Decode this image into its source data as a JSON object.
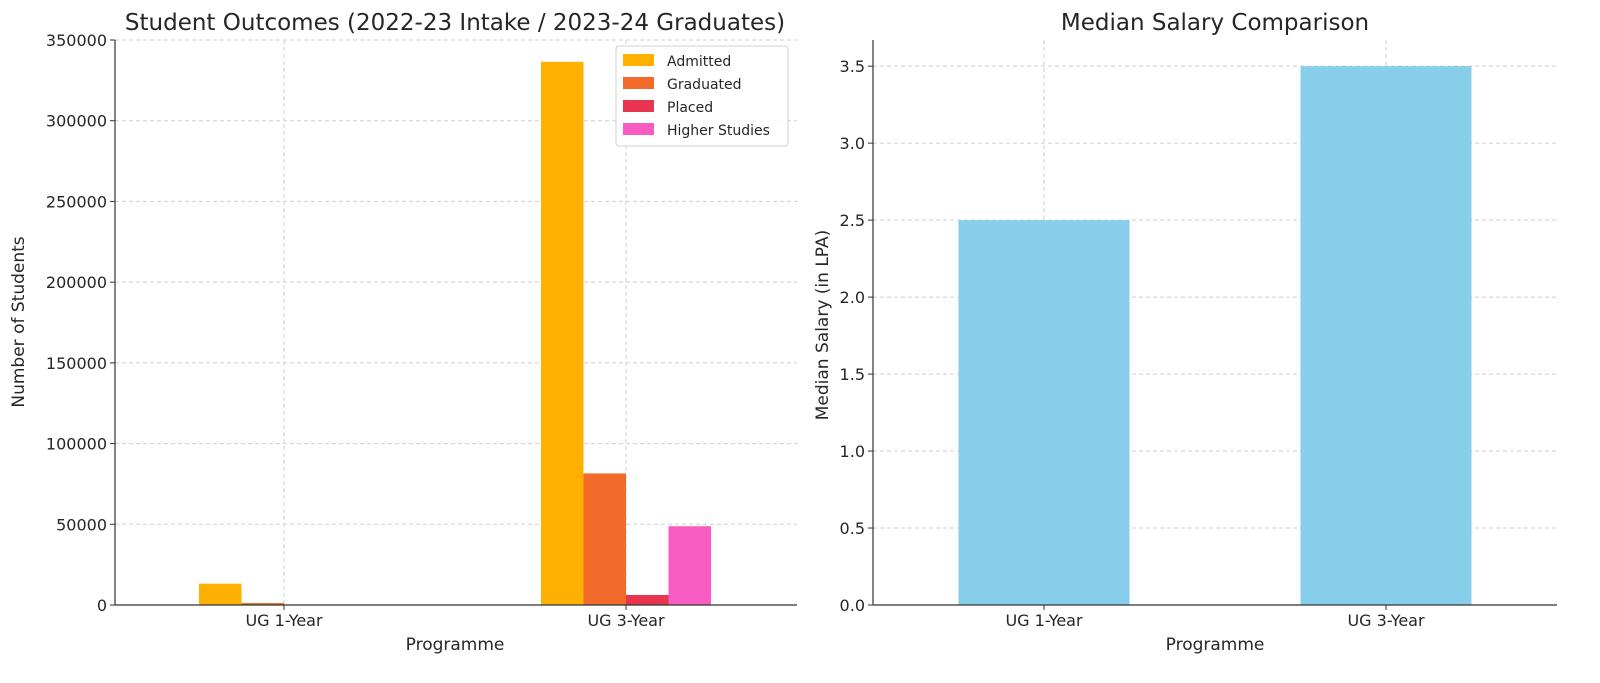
{
  "chart_data": [
    {
      "type": "bar",
      "title": "Student Outcomes (2022-23 Intake / 2023-24 Graduates)",
      "xlabel": "Programme",
      "ylabel": "Number of Students",
      "categories": [
        "UG 1-Year",
        "UG 3-Year"
      ],
      "ylim": [
        0,
        350000
      ],
      "yticks": [
        0,
        50000,
        100000,
        150000,
        200000,
        250000,
        300000,
        350000
      ],
      "grid": true,
      "legend_position": "top-right",
      "series": [
        {
          "name": "Admitted",
          "color": "#FFB000",
          "values": [
            13200,
            336500
          ]
        },
        {
          "name": "Graduated",
          "color": "#F26B2A",
          "values": [
            1200,
            81500
          ]
        },
        {
          "name": "Placed",
          "color": "#E8344E",
          "values": [
            150,
            6200
          ]
        },
        {
          "name": "Higher Studies",
          "color": "#F85CC2",
          "values": [
            300,
            48800
          ]
        }
      ]
    },
    {
      "type": "bar",
      "title": "Median Salary Comparison",
      "xlabel": "Programme",
      "ylabel": "Median Salary (in LPA)",
      "categories": [
        "UG 1-Year",
        "UG 3-Year"
      ],
      "ylim": [
        0,
        3.67
      ],
      "yticks": [
        0.0,
        0.5,
        1.0,
        1.5,
        2.0,
        2.5,
        3.0,
        3.5
      ],
      "grid": true,
      "color": "#87CEEB",
      "values": [
        2.5,
        3.5
      ]
    }
  ]
}
